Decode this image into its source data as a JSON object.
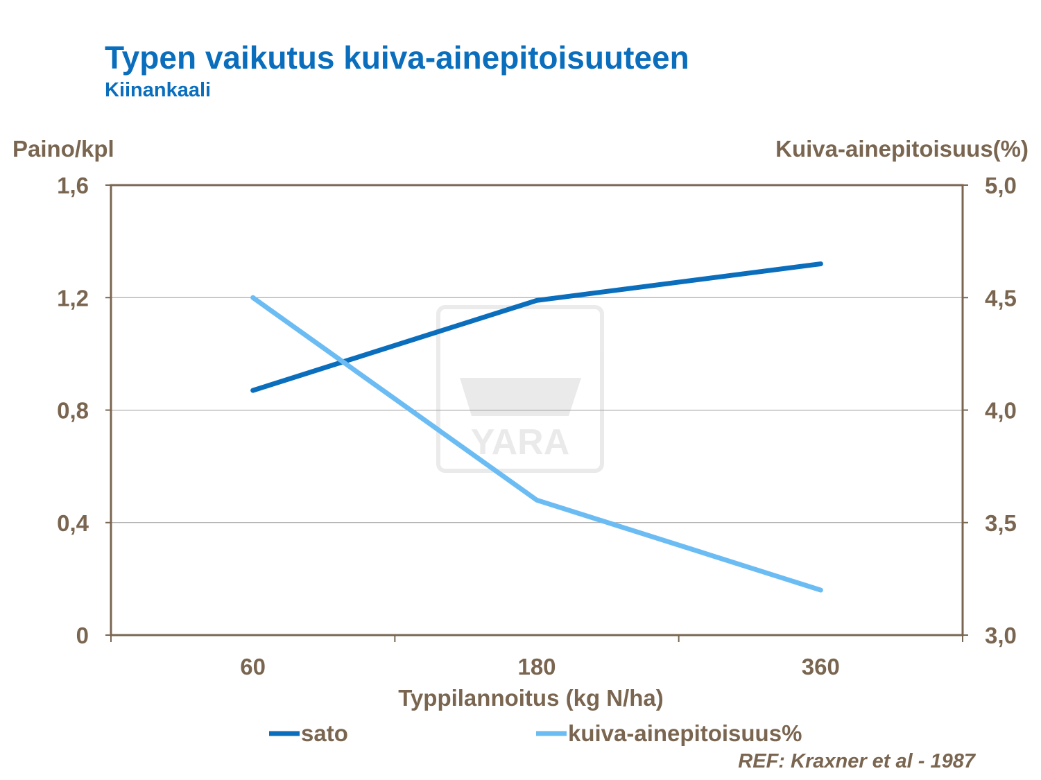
{
  "chart_data": {
    "type": "line",
    "title": "Typen vaikutus kuiva-ainepitoisuuteen",
    "subtitle": "Kiinankaali",
    "xlabel": "Typpilannoitus (kg N/ha)",
    "ylabel": "Paino/kpl",
    "y2label": "Kuiva-ainepitoisuus(%)",
    "categories": [
      "60",
      "180",
      "360"
    ],
    "ylim": [
      0,
      1.6
    ],
    "y_ticks": [
      "0",
      "0,4",
      "0,8",
      "1,2",
      "1,6"
    ],
    "y2lim": [
      3.0,
      5.0
    ],
    "y2_ticks": [
      "3,0",
      "3,5",
      "4,0",
      "4,5",
      "5,0"
    ],
    "grid": true,
    "legend": "bottom",
    "series": [
      {
        "name": "sato",
        "axis": "left",
        "color": "#0A6EBD",
        "values": [
          0.87,
          1.19,
          1.32
        ]
      },
      {
        "name": "kuiva-ainepitoisuus%",
        "axis": "right",
        "color": "#6CBCF4",
        "values": [
          4.5,
          3.6,
          3.2
        ]
      }
    ],
    "annotation": "REF: Kraxner et al - 1987",
    "watermark": "YARA"
  }
}
